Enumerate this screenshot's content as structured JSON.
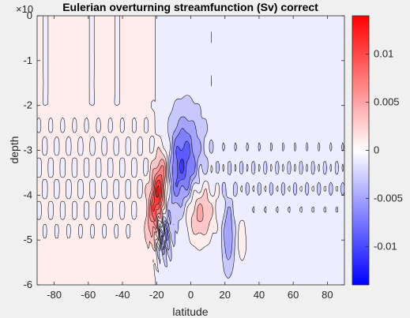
{
  "figure": {
    "background": "#f0f0f0",
    "axes_background": "#ffffff"
  },
  "chart_data": {
    "type": "heatmap",
    "title": "Eulerian overturning streamfunction (Sv) correct",
    "xlabel": "latitude",
    "ylabel": "depth",
    "y_exponent_label": "×10",
    "xlim": [
      -90,
      90
    ],
    "ylim": [
      -6,
      0
    ],
    "x_ticks": [
      -80,
      -60,
      -40,
      -20,
      0,
      20,
      40,
      60,
      80
    ],
    "y_ticks": [
      0,
      -1,
      -2,
      -3,
      -4,
      -5,
      -6
    ],
    "x_tick_labels": [
      "-80",
      "-60",
      "-40",
      "-20",
      "0",
      "20",
      "40",
      "60",
      "80"
    ],
    "y_tick_labels": [
      "0",
      "-1",
      "-2",
      "-3",
      "-4",
      "-5",
      "-6"
    ],
    "colorbar": {
      "range": [
        -0.014,
        0.014
      ],
      "ticks": [
        0.01,
        0.005,
        0,
        -0.005,
        -0.01
      ],
      "tick_labels": [
        "0.01",
        "0.005",
        "0",
        "-0.005",
        "-0.01"
      ],
      "colormap": [
        "#0000ff",
        "#ffffff",
        "#ff0000"
      ]
    },
    "contour_interval": 0.002,
    "background_levels": {
      "south_of_-18": 0.0002,
      "north_of_-18": -0.0012
    },
    "features": [
      {
        "name": "positive-core",
        "lat": -19,
        "depth": -3.95,
        "peak": 0.0125
      },
      {
        "name": "negative-cell",
        "lat": -5,
        "depth": -3.3,
        "peak": -0.0085
      },
      {
        "name": "positive-cell",
        "lat": 5,
        "depth": -4.4,
        "peak": 0.006
      },
      {
        "name": "south-negative-lobe",
        "lat": -16,
        "depth": -4.9,
        "peak": -0.004
      },
      {
        "name": "north-negative-lobe",
        "lat": 22,
        "depth": -4.9,
        "peak": -0.005
      },
      {
        "name": "north-positive-lobe",
        "lat": 30,
        "depth": -5.0,
        "peak": 0.003
      }
    ]
  }
}
